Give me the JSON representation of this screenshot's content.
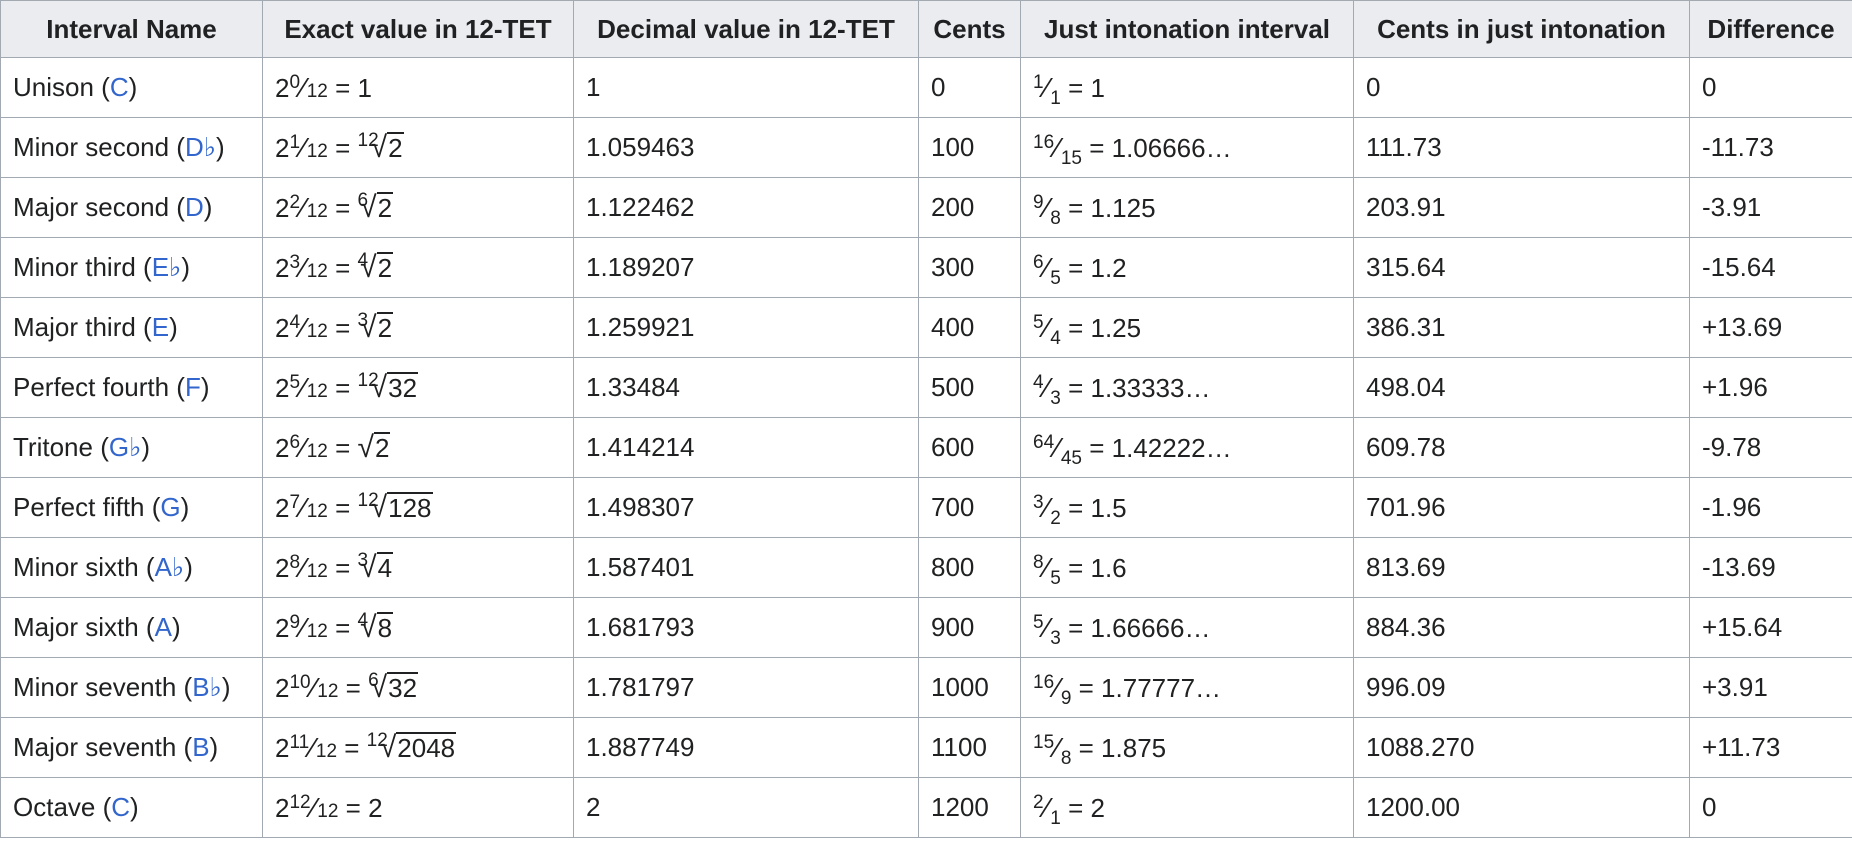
{
  "headers": [
    "Interval Name",
    "Exact value in 12-TET",
    "Decimal value in 12-TET",
    "Cents",
    "Just intonation interval",
    "Cents in just intonation",
    "Difference"
  ],
  "rows": [
    {
      "name": "Unison",
      "note": "C",
      "exp_num": "0",
      "exp_den": "12",
      "root_idx": "",
      "root_rad": "",
      "exact_tail": "1",
      "decimal": "1",
      "cents": "0",
      "ji_num": "1",
      "ji_den": "1",
      "ji_value": "1",
      "ji_cents": "0",
      "diff": "0"
    },
    {
      "name": "Minor second",
      "note": "D♭",
      "exp_num": "1",
      "exp_den": "12",
      "root_idx": "12",
      "root_rad": "2",
      "exact_tail": "",
      "decimal": "1.059463",
      "cents": "100",
      "ji_num": "16",
      "ji_den": "15",
      "ji_value": "1.06666…",
      "ji_cents": "111.73",
      "diff": "-11.73"
    },
    {
      "name": "Major second",
      "note": "D",
      "exp_num": "2",
      "exp_den": "12",
      "root_idx": "6",
      "root_rad": "2",
      "exact_tail": "",
      "decimal": "1.122462",
      "cents": "200",
      "ji_num": "9",
      "ji_den": "8",
      "ji_value": "1.125",
      "ji_cents": "203.91",
      "diff": "-3.91"
    },
    {
      "name": "Minor third",
      "note": "E♭",
      "exp_num": "3",
      "exp_den": "12",
      "root_idx": "4",
      "root_rad": "2",
      "exact_tail": "",
      "decimal": "1.189207",
      "cents": "300",
      "ji_num": "6",
      "ji_den": "5",
      "ji_value": "1.2",
      "ji_cents": "315.64",
      "diff": "-15.64"
    },
    {
      "name": "Major third",
      "note": "E",
      "exp_num": "4",
      "exp_den": "12",
      "root_idx": "3",
      "root_rad": "2",
      "exact_tail": "",
      "decimal": "1.259921",
      "cents": "400",
      "ji_num": "5",
      "ji_den": "4",
      "ji_value": "1.25",
      "ji_cents": "386.31",
      "diff": "+13.69"
    },
    {
      "name": "Perfect fourth",
      "note": "F",
      "exp_num": "5",
      "exp_den": "12",
      "root_idx": "12",
      "root_rad": "32",
      "exact_tail": "",
      "decimal": "1.33484",
      "cents": "500",
      "ji_num": "4",
      "ji_den": "3",
      "ji_value": "1.33333…",
      "ji_cents": "498.04",
      "diff": "+1.96"
    },
    {
      "name": "Tritone",
      "note": "G♭",
      "exp_num": "6",
      "exp_den": "12",
      "root_idx": "",
      "root_rad": "2",
      "exact_tail": "",
      "decimal": "1.414214",
      "cents": "600",
      "ji_num": "64",
      "ji_den": "45",
      "ji_value": "1.42222…",
      "ji_cents": "609.78",
      "diff": "-9.78"
    },
    {
      "name": "Perfect fifth",
      "note": "G",
      "exp_num": "7",
      "exp_den": "12",
      "root_idx": "12",
      "root_rad": "128",
      "exact_tail": "",
      "decimal": "1.498307",
      "cents": "700",
      "ji_num": "3",
      "ji_den": "2",
      "ji_value": "1.5",
      "ji_cents": "701.96",
      "diff": "-1.96"
    },
    {
      "name": "Minor sixth",
      "note": "A♭",
      "exp_num": "8",
      "exp_den": "12",
      "root_idx": "3",
      "root_rad": "4",
      "exact_tail": "",
      "decimal": "1.587401",
      "cents": "800",
      "ji_num": "8",
      "ji_den": "5",
      "ji_value": "1.6",
      "ji_cents": "813.69",
      "diff": "-13.69"
    },
    {
      "name": "Major sixth",
      "note": "A",
      "exp_num": "9",
      "exp_den": "12",
      "root_idx": "4",
      "root_rad": "8",
      "exact_tail": "",
      "decimal": "1.681793",
      "cents": "900",
      "ji_num": "5",
      "ji_den": "3",
      "ji_value": "1.66666…",
      "ji_cents": "884.36",
      "diff": "+15.64"
    },
    {
      "name": "Minor seventh",
      "note": "B♭",
      "exp_num": "10",
      "exp_den": "12",
      "root_idx": "6",
      "root_rad": "32",
      "exact_tail": "",
      "decimal": "1.781797",
      "cents": "1000",
      "ji_num": "16",
      "ji_den": "9",
      "ji_value": "1.77777…",
      "ji_cents": "996.09",
      "diff": "+3.91"
    },
    {
      "name": "Major seventh",
      "note": "B",
      "exp_num": "11",
      "exp_den": "12",
      "root_idx": "12",
      "root_rad": "2048",
      "exact_tail": "",
      "decimal": "1.887749",
      "cents": "1100",
      "ji_num": "15",
      "ji_den": "8",
      "ji_value": "1.875",
      "ji_cents": "1088.270",
      "diff": "+11.73"
    },
    {
      "name": "Octave",
      "note": "C",
      "exp_num": "12",
      "exp_den": "12",
      "root_idx": "",
      "root_rad": "",
      "exact_tail": "2",
      "decimal": "2",
      "cents": "1200",
      "ji_num": "2",
      "ji_den": "1",
      "ji_value": "2",
      "ji_cents": "1200.00",
      "diff": "0"
    }
  ]
}
